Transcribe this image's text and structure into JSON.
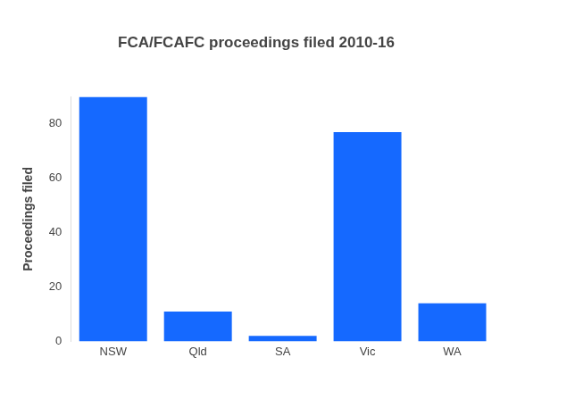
{
  "chart_data": {
    "type": "bar",
    "title": "FCA/FCAFC proceedings filed 2010-16",
    "y_label": "Proceedings filed",
    "categories": [
      "NSW",
      "Qld",
      "SA",
      "Vic",
      "WA"
    ],
    "values": [
      90,
      11,
      2,
      77,
      14
    ],
    "color": "#1569ff",
    "ylim": [
      0,
      90
    ],
    "yticks": [
      0,
      20,
      40,
      60,
      80
    ],
    "grid": false
  }
}
